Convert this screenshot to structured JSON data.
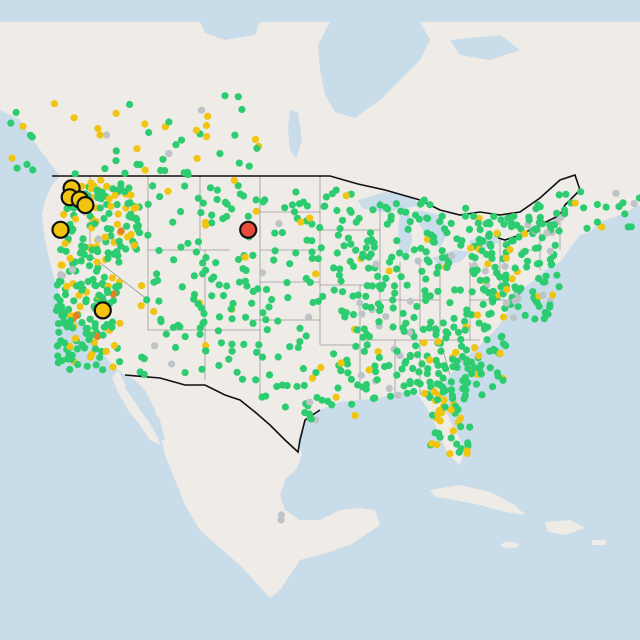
{
  "map": {
    "colors": {
      "ocean": "#c9dcea",
      "land": "#efebe7",
      "land_shade": "#e6e1dc",
      "lakes": "#c9dcea",
      "border_nation": "#111111",
      "border_state": "#9a9a9a",
      "good": "#2ecc71",
      "moderate": "#f1c40f",
      "unhealthy_sensitive": "#e67e22",
      "unhealthy": "#e74c3c",
      "no_data": "#bdc3c7",
      "highlight_stroke": "#111111"
    },
    "stations": {
      "highlighted": [
        {
          "status": "moderate",
          "lon": -122.7,
          "lat": 47.9
        },
        {
          "status": "moderate",
          "lon": -122.9,
          "lat": 47.1
        },
        {
          "status": "moderate",
          "lon": -121.8,
          "lat": 46.9
        },
        {
          "status": "moderate",
          "lon": -121.2,
          "lat": 46.4
        },
        {
          "status": "moderate",
          "lon": -123.9,
          "lat": 44.2
        },
        {
          "status": "moderate",
          "lon": -119.3,
          "lat": 37.0
        },
        {
          "status": "unhealthy",
          "lon": -103.5,
          "lat": 44.2
        }
      ]
    }
  }
}
